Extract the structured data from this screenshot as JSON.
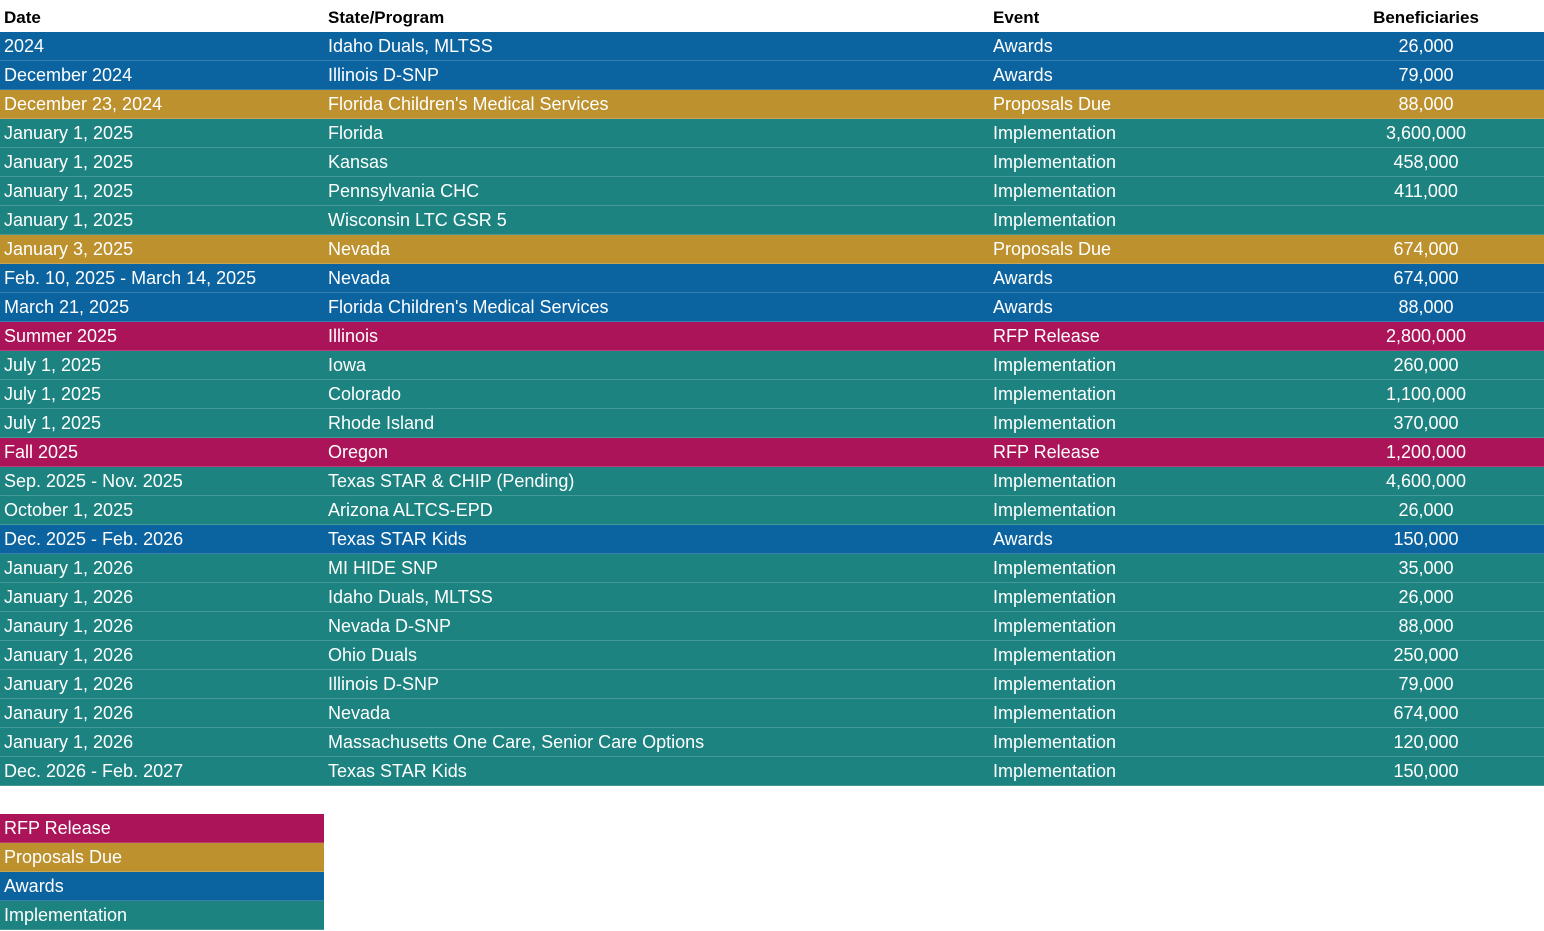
{
  "table": {
    "header": [
      "Date",
      "State/Program",
      "Event",
      "Beneficiaries"
    ],
    "rows": [
      [
        "2024",
        "Idaho Duals, MLTSS",
        "Awards",
        "26,000"
      ],
      [
        "December 2024",
        "Illinois D-SNP",
        "Awards",
        "79,000"
      ],
      [
        "December 23, 2024",
        "Florida Children's Medical Services",
        "Proposals Due",
        "88,000"
      ],
      [
        "January 1, 2025",
        "Florida",
        "Implementation",
        "3,600,000"
      ],
      [
        "January 1, 2025",
        "Kansas",
        "Implementation",
        "458,000"
      ],
      [
        "January 1, 2025",
        "Pennsylvania CHC",
        "Implementation",
        "411,000"
      ],
      [
        "January 1, 2025",
        "Wisconsin LTC GSR 5",
        "Implementation",
        null
      ],
      [
        "January 3, 2025",
        "Nevada",
        "Proposals Due",
        "674,000"
      ],
      [
        "Feb. 10, 2025 - March 14, 2025",
        "Nevada",
        "Awards",
        "674,000"
      ],
      [
        "March 21, 2025",
        "Florida Children's Medical Services",
        "Awards",
        "88,000"
      ],
      [
        "Summer 2025",
        "Illinois",
        "RFP Release",
        "2,800,000"
      ],
      [
        "July 1, 2025",
        "Iowa",
        "Implementation",
        "260,000"
      ],
      [
        "July 1, 2025",
        "Colorado",
        "Implementation",
        "1,100,000"
      ],
      [
        "July 1, 2025",
        "Rhode Island",
        "Implementation",
        "370,000"
      ],
      [
        "Fall 2025",
        "Oregon",
        "RFP Release",
        "1,200,000"
      ],
      [
        "Sep. 2025 - Nov. 2025",
        "Texas STAR & CHIP (Pending)",
        "Implementation",
        "4,600,000"
      ],
      [
        "October 1, 2025",
        "Arizona ALTCS-EPD",
        "Implementation",
        "26,000"
      ],
      [
        "Dec. 2025 - Feb. 2026",
        "Texas STAR Kids",
        "Awards",
        "150,000"
      ],
      [
        "January 1, 2026",
        "MI HIDE SNP",
        "Implementation",
        "35,000"
      ],
      [
        "January 1, 2026",
        "Idaho Duals, MLTSS",
        "Implementation",
        "26,000"
      ],
      [
        "Janaury 1, 2026",
        "Nevada D-SNP",
        "Implementation",
        "88,000"
      ],
      [
        "January 1, 2026",
        "Ohio Duals",
        "Implementation",
        "250,000"
      ],
      [
        "January 1, 2026",
        "Illinois D-SNP",
        "Implementation",
        "79,000"
      ],
      [
        "Janaury 1, 2026",
        "Nevada",
        "Implementation",
        "674,000"
      ],
      [
        "January 1, 2026",
        "Massachusetts One Care, Senior Care Options",
        "Implementation",
        "120,000"
      ],
      [
        "Dec. 2026 - Feb. 2027",
        "Texas STAR Kids",
        "Implementation",
        "150,000"
      ]
    ]
  },
  "legend": [
    {
      "label": "RFP Release",
      "color": "#ab1458"
    },
    {
      "label": "Proposals Due",
      "color": "#bc912e"
    },
    {
      "label": "Awards",
      "color": "#0b63a0"
    },
    {
      "label": "Implementation",
      "color": "#1d8380"
    }
  ]
}
